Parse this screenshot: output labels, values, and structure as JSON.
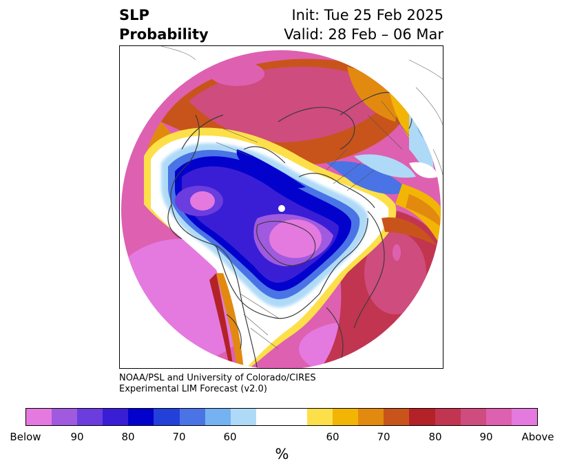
{
  "header": {
    "title_line1": "SLP",
    "title_line2": "Probability",
    "init_text": "Init: Tue 25 Feb 2025",
    "valid_text": "Valid: 28 Feb – 06 Mar"
  },
  "map": {
    "projection": "north polar stereographic",
    "field": "SLP probability"
  },
  "credit": {
    "line1": "NOAA/PSL and University of Colorado/CIRES",
    "line2": "Experimental LIM Forecast (v2.0)"
  },
  "colorbar": {
    "colors": [
      "#e479e0",
      "#a05ae0",
      "#6b3dde",
      "#3a1ed6",
      "#0202cc",
      "#2340d8",
      "#4a74e6",
      "#74b2f2",
      "#aedaf8",
      "#ffffff",
      "#ffffff",
      "#fde049",
      "#f3b505",
      "#e2890f",
      "#c8531b",
      "#b22226",
      "#c23550",
      "#cf4c7e",
      "#dd61b0",
      "#e479e0"
    ],
    "tick_labels": [
      "Below",
      "90",
      "80",
      "70",
      "60",
      "60",
      "70",
      "80",
      "90",
      "Above"
    ],
    "units_label": "%"
  }
}
